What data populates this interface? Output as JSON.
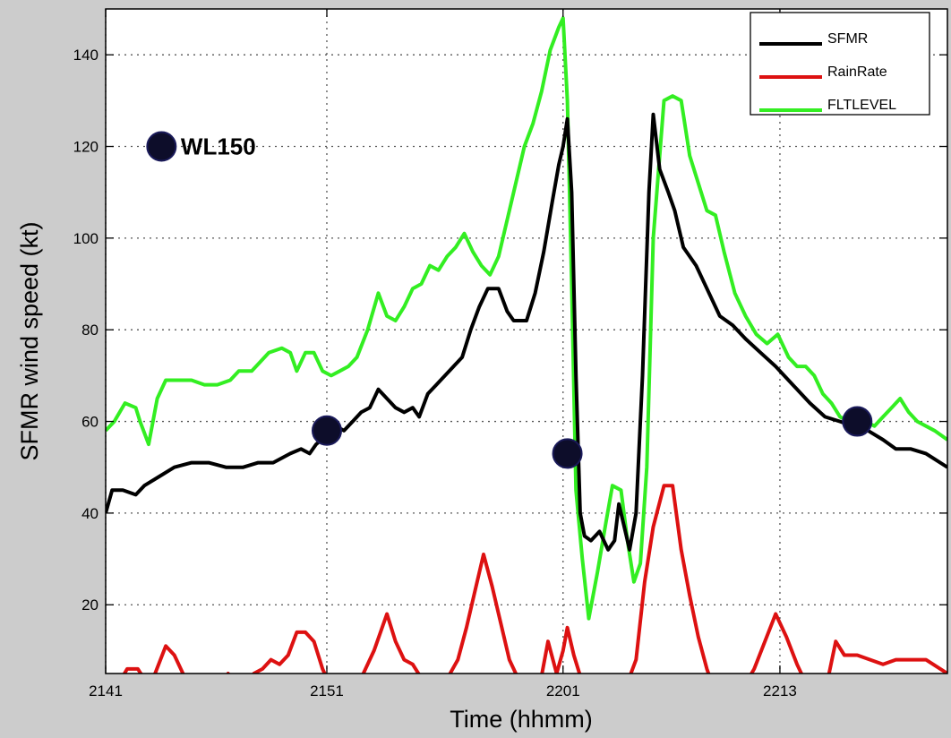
{
  "chart_data": {
    "type": "line",
    "title": "",
    "xlabel": "Time (hhmm)",
    "ylabel": "SFMR wind speed (kt)",
    "xlim": [
      0,
      39.2
    ],
    "ylim": [
      5,
      150
    ],
    "x_ticks": [
      {
        "pos": 0,
        "label": "2141"
      },
      {
        "pos": 10.3,
        "label": "2151"
      },
      {
        "pos": 21.3,
        "label": "2201"
      },
      {
        "pos": 31.4,
        "label": "2213"
      }
    ],
    "y_ticks": [
      20,
      40,
      60,
      80,
      100,
      120,
      140
    ],
    "grid": true,
    "legend": {
      "placement": "top-right"
    },
    "series": [
      {
        "name": "SFMR",
        "color": "#000000",
        "points": [
          [
            0,
            40
          ],
          [
            0.3,
            45
          ],
          [
            0.8,
            45
          ],
          [
            1.4,
            44
          ],
          [
            1.8,
            46
          ],
          [
            2.5,
            48
          ],
          [
            3.2,
            50
          ],
          [
            4,
            51
          ],
          [
            4.8,
            51
          ],
          [
            5.6,
            50
          ],
          [
            6.4,
            50
          ],
          [
            7.1,
            51
          ],
          [
            7.8,
            51
          ],
          [
            8.2,
            52
          ],
          [
            8.6,
            53
          ],
          [
            9.1,
            54
          ],
          [
            9.5,
            53
          ],
          [
            9.8,
            55
          ],
          [
            10.3,
            57
          ],
          [
            10.7,
            59
          ],
          [
            11.1,
            58
          ],
          [
            11.5,
            60
          ],
          [
            11.9,
            62
          ],
          [
            12.3,
            63
          ],
          [
            12.7,
            67
          ],
          [
            13.1,
            65
          ],
          [
            13.5,
            63
          ],
          [
            13.9,
            62
          ],
          [
            14.3,
            63
          ],
          [
            14.6,
            61
          ],
          [
            15,
            66
          ],
          [
            15.4,
            68
          ],
          [
            15.8,
            70
          ],
          [
            16.2,
            72
          ],
          [
            16.6,
            74
          ],
          [
            17,
            80
          ],
          [
            17.4,
            85
          ],
          [
            17.8,
            89
          ],
          [
            18.3,
            89
          ],
          [
            18.7,
            84
          ],
          [
            19,
            82
          ],
          [
            19.6,
            82
          ],
          [
            20,
            88
          ],
          [
            20.4,
            97
          ],
          [
            20.8,
            108
          ],
          [
            21.1,
            116
          ],
          [
            21.3,
            120
          ],
          [
            21.5,
            126
          ],
          [
            21.7,
            110
          ],
          [
            21.9,
            70
          ],
          [
            22.1,
            40
          ],
          [
            22.3,
            35
          ],
          [
            22.6,
            34
          ],
          [
            23,
            36
          ],
          [
            23.4,
            32
          ],
          [
            23.7,
            34
          ],
          [
            23.9,
            42
          ],
          [
            24.1,
            38
          ],
          [
            24.4,
            32
          ],
          [
            24.7,
            40
          ],
          [
            25,
            70
          ],
          [
            25.3,
            110
          ],
          [
            25.5,
            127
          ],
          [
            25.8,
            115
          ],
          [
            26.2,
            110
          ],
          [
            26.5,
            106
          ],
          [
            26.9,
            98
          ],
          [
            27.5,
            94
          ],
          [
            28,
            89
          ],
          [
            28.6,
            83
          ],
          [
            29.2,
            81
          ],
          [
            29.8,
            78
          ],
          [
            30.5,
            75
          ],
          [
            31.2,
            72
          ],
          [
            32,
            68
          ],
          [
            32.8,
            64
          ],
          [
            33.5,
            61
          ],
          [
            34.2,
            60
          ],
          [
            34.8,
            59
          ],
          [
            35.5,
            58
          ],
          [
            36.2,
            56
          ],
          [
            36.8,
            54
          ],
          [
            37.5,
            54
          ],
          [
            38.2,
            53
          ],
          [
            39.2,
            50
          ]
        ]
      },
      {
        "name": "RainRate",
        "color": "#dd1111",
        "points": [
          [
            0,
            2
          ],
          [
            0.5,
            2
          ],
          [
            1,
            6
          ],
          [
            1.5,
            6
          ],
          [
            1.9,
            3
          ],
          [
            2.3,
            5
          ],
          [
            2.8,
            11
          ],
          [
            3.2,
            9
          ],
          [
            3.6,
            5
          ],
          [
            4,
            2
          ],
          [
            5.3,
            2
          ],
          [
            5.7,
            5
          ],
          [
            6.2,
            2
          ],
          [
            6.6,
            2
          ],
          [
            6.9,
            5
          ],
          [
            7.3,
            6
          ],
          [
            7.7,
            8
          ],
          [
            8.1,
            7
          ],
          [
            8.5,
            9
          ],
          [
            8.9,
            14
          ],
          [
            9.3,
            14
          ],
          [
            9.7,
            12
          ],
          [
            10.1,
            6
          ],
          [
            10.4,
            3
          ],
          [
            11.5,
            2
          ],
          [
            11.9,
            4
          ],
          [
            12.5,
            10
          ],
          [
            13.1,
            18
          ],
          [
            13.5,
            12
          ],
          [
            13.9,
            8
          ],
          [
            14.3,
            7
          ],
          [
            14.7,
            4
          ],
          [
            15.1,
            2
          ],
          [
            15.8,
            3
          ],
          [
            16.4,
            8
          ],
          [
            16.8,
            15
          ],
          [
            17.2,
            23
          ],
          [
            17.6,
            31
          ],
          [
            18,
            24
          ],
          [
            18.4,
            16
          ],
          [
            18.8,
            8
          ],
          [
            19.3,
            3
          ],
          [
            20.2,
            2
          ],
          [
            20.6,
            12
          ],
          [
            21,
            5
          ],
          [
            21.3,
            10
          ],
          [
            21.5,
            15
          ],
          [
            21.8,
            9
          ],
          [
            22.2,
            3
          ],
          [
            24.3,
            3
          ],
          [
            24.7,
            8
          ],
          [
            25.1,
            25
          ],
          [
            25.5,
            37
          ],
          [
            26,
            46
          ],
          [
            26.4,
            46
          ],
          [
            26.8,
            32
          ],
          [
            27.2,
            22
          ],
          [
            27.6,
            13
          ],
          [
            28,
            6
          ],
          [
            28.3,
            2
          ],
          [
            29.7,
            2
          ],
          [
            30.2,
            6
          ],
          [
            30.7,
            12
          ],
          [
            31.2,
            18
          ],
          [
            31.7,
            13
          ],
          [
            32.2,
            7
          ],
          [
            32.6,
            3
          ],
          [
            33,
            2
          ],
          [
            33.6,
            3
          ],
          [
            34,
            12
          ],
          [
            34.4,
            9
          ],
          [
            35,
            9
          ],
          [
            35.6,
            8
          ],
          [
            36.2,
            7
          ],
          [
            36.8,
            8
          ],
          [
            37.5,
            8
          ],
          [
            38.2,
            8
          ],
          [
            39.2,
            5
          ]
        ]
      },
      {
        "name": "FLTLEVEL",
        "color": "#33ee22",
        "points": [
          [
            0,
            58
          ],
          [
            0.4,
            60
          ],
          [
            0.9,
            64
          ],
          [
            1.4,
            63
          ],
          [
            1.6,
            60
          ],
          [
            2,
            55
          ],
          [
            2.4,
            65
          ],
          [
            2.8,
            69
          ],
          [
            3.4,
            69
          ],
          [
            4,
            69
          ],
          [
            4.6,
            68
          ],
          [
            5.2,
            68
          ],
          [
            5.8,
            69
          ],
          [
            6.2,
            71
          ],
          [
            6.8,
            71
          ],
          [
            7.2,
            73
          ],
          [
            7.6,
            75
          ],
          [
            8.2,
            76
          ],
          [
            8.6,
            75
          ],
          [
            8.9,
            71
          ],
          [
            9.3,
            75
          ],
          [
            9.7,
            75
          ],
          [
            10.1,
            71
          ],
          [
            10.5,
            70
          ],
          [
            10.9,
            71
          ],
          [
            11.3,
            72
          ],
          [
            11.7,
            74
          ],
          [
            12.2,
            80
          ],
          [
            12.7,
            88
          ],
          [
            13.1,
            83
          ],
          [
            13.5,
            82
          ],
          [
            13.9,
            85
          ],
          [
            14.3,
            89
          ],
          [
            14.7,
            90
          ],
          [
            15.1,
            94
          ],
          [
            15.5,
            93
          ],
          [
            15.9,
            96
          ],
          [
            16.3,
            98
          ],
          [
            16.7,
            101
          ],
          [
            17.1,
            97
          ],
          [
            17.5,
            94
          ],
          [
            17.9,
            92
          ],
          [
            18.3,
            96
          ],
          [
            18.7,
            104
          ],
          [
            19.1,
            112
          ],
          [
            19.5,
            120
          ],
          [
            19.9,
            125
          ],
          [
            20.3,
            132
          ],
          [
            20.7,
            141
          ],
          [
            21.1,
            146
          ],
          [
            21.3,
            148
          ],
          [
            21.5,
            130
          ],
          [
            21.7,
            90
          ],
          [
            21.9,
            45
          ],
          [
            22.2,
            30
          ],
          [
            22.5,
            17
          ],
          [
            22.9,
            27
          ],
          [
            23.3,
            38
          ],
          [
            23.6,
            46
          ],
          [
            24,
            45
          ],
          [
            24.3,
            34
          ],
          [
            24.6,
            25
          ],
          [
            24.9,
            29
          ],
          [
            25.2,
            50
          ],
          [
            25.5,
            100
          ],
          [
            26,
            130
          ],
          [
            26.4,
            131
          ],
          [
            26.8,
            130
          ],
          [
            27.2,
            118
          ],
          [
            27.6,
            112
          ],
          [
            28,
            106
          ],
          [
            28.4,
            105
          ],
          [
            28.8,
            97
          ],
          [
            29.3,
            88
          ],
          [
            29.8,
            83
          ],
          [
            30.3,
            79
          ],
          [
            30.8,
            77
          ],
          [
            31.3,
            79
          ],
          [
            31.8,
            74
          ],
          [
            32.2,
            72
          ],
          [
            32.6,
            72
          ],
          [
            33,
            70
          ],
          [
            33.4,
            66
          ],
          [
            33.8,
            64
          ],
          [
            34.2,
            61
          ],
          [
            34.6,
            60
          ],
          [
            35,
            59
          ],
          [
            35.4,
            60
          ],
          [
            35.8,
            59
          ],
          [
            36.2,
            61
          ],
          [
            36.6,
            63
          ],
          [
            37,
            65
          ],
          [
            37.4,
            62
          ],
          [
            37.8,
            60
          ],
          [
            38.2,
            59
          ],
          [
            38.6,
            58
          ],
          [
            39.2,
            56
          ]
        ]
      }
    ],
    "markers": [
      {
        "x": 2.6,
        "y": 120,
        "color": "#0d0d2a"
      },
      {
        "x": 10.3,
        "y": 58,
        "color": "#0d0d2a"
      },
      {
        "x": 21.5,
        "y": 53,
        "color": "#0d0d2a"
      },
      {
        "x": 35,
        "y": 60,
        "color": "#0d0d2a"
      }
    ],
    "annotation": {
      "text": "WL150",
      "x": 3.5,
      "y": 120
    }
  }
}
